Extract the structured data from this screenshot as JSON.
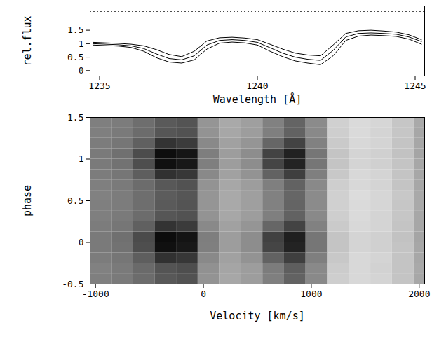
{
  "chart_data": [
    {
      "type": "line",
      "x_label": "Wavelength [Å]",
      "y_label": "rel.flux",
      "xlim": [
        1234.7,
        1245.3
      ],
      "xticks": [
        1235,
        1240,
        1245
      ],
      "ylim": [
        -0.2,
        2.4
      ],
      "yticks": [
        0,
        0.5,
        1,
        1.5
      ],
      "grid": false,
      "hlines": [
        0.32,
        2.2
      ],
      "x": [
        1234.8,
        1235.2,
        1235.6,
        1236.0,
        1236.4,
        1236.8,
        1237.2,
        1237.6,
        1238.0,
        1238.4,
        1238.8,
        1239.2,
        1239.6,
        1240.0,
        1240.4,
        1240.8,
        1241.2,
        1241.6,
        1242.0,
        1242.4,
        1242.8,
        1243.2,
        1243.6,
        1244.0,
        1244.4,
        1244.8,
        1245.2
      ],
      "series": [
        {
          "color": "#000000",
          "values": [
            0.95,
            0.93,
            0.91,
            0.86,
            0.72,
            0.48,
            0.32,
            0.28,
            0.4,
            0.8,
            1.02,
            1.06,
            1.03,
            0.95,
            0.72,
            0.52,
            0.36,
            0.28,
            0.22,
            0.55,
            1.12,
            1.28,
            1.32,
            1.3,
            1.27,
            1.17,
            0.98
          ]
        },
        {
          "color": "#000000",
          "values": [
            1.0,
            0.98,
            0.96,
            0.92,
            0.82,
            0.62,
            0.45,
            0.4,
            0.55,
            0.95,
            1.12,
            1.15,
            1.12,
            1.05,
            0.85,
            0.65,
            0.5,
            0.42,
            0.38,
            0.75,
            1.25,
            1.38,
            1.4,
            1.38,
            1.35,
            1.25,
            1.08
          ]
        },
        {
          "color": "#000000",
          "values": [
            1.05,
            1.03,
            1.01,
            0.98,
            0.92,
            0.78,
            0.6,
            0.52,
            0.72,
            1.1,
            1.22,
            1.24,
            1.21,
            1.15,
            0.98,
            0.8,
            0.65,
            0.58,
            0.55,
            0.95,
            1.38,
            1.48,
            1.5,
            1.47,
            1.43,
            1.33,
            1.15
          ]
        }
      ]
    },
    {
      "type": "heatmap",
      "x_label": "Velocity [km/s]",
      "y_label": "phase",
      "xlim": [
        -1050,
        2050
      ],
      "xticks": [
        -1000,
        0,
        1000,
        2000
      ],
      "ylim": [
        -0.5,
        1.5
      ],
      "yticks": [
        -0.5,
        0,
        0.5,
        1,
        1.5
      ],
      "zlim": [
        0.3,
        1.6
      ],
      "x_edges": [
        -1050,
        -850,
        -650,
        -450,
        -250,
        -50,
        150,
        350,
        550,
        750,
        950,
        1150,
        1350,
        1550,
        1750,
        1950,
        2050
      ],
      "y_edges": [
        -0.5,
        -0.375,
        -0.25,
        -0.125,
        0,
        0.125,
        0.25,
        0.375,
        0.5,
        0.625,
        0.75,
        0.875,
        1,
        1.125,
        1.25,
        1.375,
        1.5
      ],
      "cells": [
        [
          0.95,
          0.92,
          0.85,
          0.75,
          0.72,
          1.05,
          1.15,
          1.1,
          0.95,
          0.8,
          1.0,
          1.35,
          1.4,
          1.38,
          1.3,
          1.15
        ],
        [
          0.96,
          0.92,
          0.84,
          0.73,
          0.7,
          1.04,
          1.14,
          1.1,
          0.93,
          0.78,
          1.0,
          1.34,
          1.4,
          1.37,
          1.3,
          1.16
        ],
        [
          0.93,
          0.9,
          0.78,
          0.55,
          0.58,
          1.0,
          1.12,
          1.05,
          0.8,
          0.62,
          0.95,
          1.32,
          1.4,
          1.38,
          1.3,
          1.15
        ],
        [
          0.92,
          0.88,
          0.7,
          0.38,
          0.42,
          0.95,
          1.1,
          1.02,
          0.65,
          0.48,
          0.9,
          1.3,
          1.38,
          1.36,
          1.3,
          1.15
        ],
        [
          0.92,
          0.87,
          0.68,
          0.36,
          0.4,
          0.94,
          1.1,
          1.02,
          0.63,
          0.46,
          0.9,
          1.3,
          1.38,
          1.36,
          1.29,
          1.14
        ],
        [
          0.93,
          0.9,
          0.79,
          0.56,
          0.6,
          1.0,
          1.12,
          1.06,
          0.82,
          0.64,
          0.96,
          1.33,
          1.4,
          1.38,
          1.3,
          1.15
        ],
        [
          0.95,
          0.92,
          0.85,
          0.74,
          0.72,
          1.05,
          1.15,
          1.1,
          0.95,
          0.8,
          1.0,
          1.35,
          1.41,
          1.38,
          1.31,
          1.15
        ],
        [
          0.95,
          0.93,
          0.86,
          0.76,
          0.73,
          1.06,
          1.16,
          1.11,
          0.96,
          0.81,
          1.01,
          1.36,
          1.41,
          1.39,
          1.31,
          1.16
        ],
        [
          0.96,
          0.93,
          0.86,
          0.77,
          0.74,
          1.06,
          1.16,
          1.11,
          0.96,
          0.82,
          1.01,
          1.36,
          1.42,
          1.39,
          1.32,
          1.16
        ],
        [
          0.95,
          0.92,
          0.85,
          0.75,
          0.72,
          1.05,
          1.15,
          1.1,
          0.95,
          0.8,
          1.0,
          1.35,
          1.4,
          1.38,
          1.3,
          1.15
        ],
        [
          0.93,
          0.9,
          0.78,
          0.55,
          0.58,
          1.0,
          1.12,
          1.05,
          0.8,
          0.62,
          0.95,
          1.32,
          1.4,
          1.38,
          1.3,
          1.15
        ],
        [
          0.92,
          0.88,
          0.7,
          0.38,
          0.42,
          0.95,
          1.1,
          1.02,
          0.65,
          0.48,
          0.9,
          1.3,
          1.38,
          1.36,
          1.3,
          1.15
        ],
        [
          0.92,
          0.87,
          0.69,
          0.37,
          0.41,
          0.94,
          1.1,
          1.02,
          0.64,
          0.47,
          0.9,
          1.3,
          1.38,
          1.36,
          1.29,
          1.14
        ],
        [
          0.93,
          0.9,
          0.79,
          0.56,
          0.6,
          1.0,
          1.12,
          1.06,
          0.82,
          0.64,
          0.96,
          1.33,
          1.4,
          1.38,
          1.3,
          1.15
        ],
        [
          0.95,
          0.92,
          0.85,
          0.74,
          0.72,
          1.05,
          1.15,
          1.1,
          0.95,
          0.8,
          1.0,
          1.35,
          1.41,
          1.38,
          1.31,
          1.15
        ],
        [
          0.95,
          0.93,
          0.86,
          0.76,
          0.73,
          1.06,
          1.16,
          1.11,
          0.96,
          0.81,
          1.01,
          1.36,
          1.41,
          1.39,
          1.31,
          1.16
        ]
      ]
    }
  ]
}
